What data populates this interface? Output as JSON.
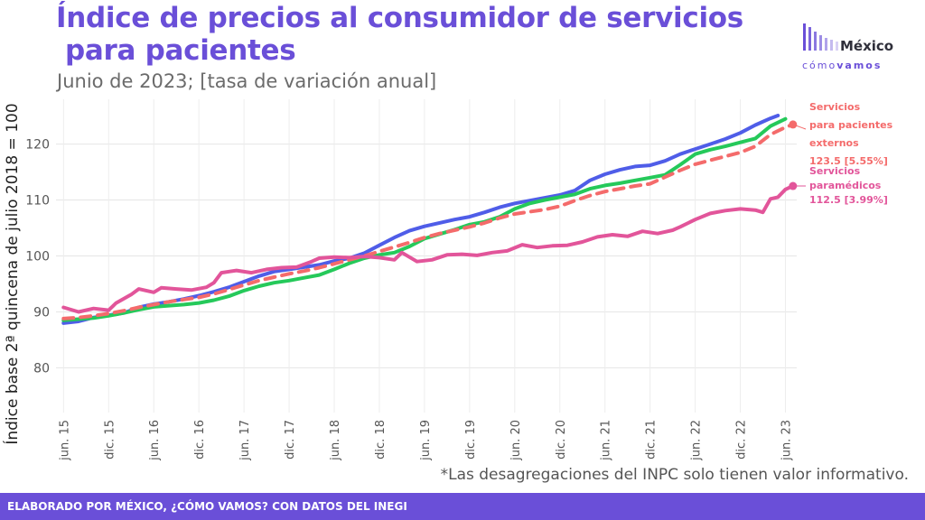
{
  "header": {
    "title_line1": "Índice de precios al consumidor de servicios",
    "title_line2": "para pacientes",
    "subtitle": "Junio de 2023; [tasa de variación anual]"
  },
  "logo": {
    "word1": "México",
    "word2a": "cómo",
    "word2b": "vamos",
    "bars_color": "#6a4fd8"
  },
  "note": "*Las desagregaciones del INPC solo tienen valor informativo.",
  "footer": {
    "text": "ELABORADO POR MÉXICO, ¿CÓMO VAMOS? CON DATOS DEL INEGI"
  },
  "chart_data": {
    "type": "line",
    "ylabel": "Índice base 2ª quincena de julio 2018 = 100",
    "xlabel": "",
    "x_tick_labels": [
      "jun. 15",
      "dic. 15",
      "jun. 16",
      "dic. 16",
      "jun. 17",
      "dic. 17",
      "jun. 18",
      "dic. 18",
      "jun. 19",
      "dic. 19",
      "jun. 20",
      "dic. 20",
      "jun. 21",
      "dic. 21",
      "jun. 22",
      "dic. 22",
      "jun. 23"
    ],
    "y_ticks": [
      80,
      90,
      100,
      110,
      120
    ],
    "ylim": [
      72,
      128
    ],
    "xlim": [
      -1,
      97.5
    ],
    "grid": true,
    "annotations": [
      {
        "series": 2,
        "lines": [
          "Servicios",
          "para pacientes",
          "externos",
          "123.5 [5.55%]"
        ],
        "color": "#f46b6b"
      },
      {
        "series": 3,
        "lines": [
          "Servicios",
          "paramédicos",
          "112.5 [3.99%]"
        ],
        "color": "#e2559a"
      }
    ],
    "series": [
      {
        "color": "#4f5de8",
        "dashed": false,
        "end_point": false,
        "points": [
          [
            0,
            88
          ],
          [
            2,
            88.3
          ],
          [
            4,
            89
          ],
          [
            6,
            89.4
          ],
          [
            8,
            89.8
          ],
          [
            10,
            90.8
          ],
          [
            12,
            91.4
          ],
          [
            14,
            91.8
          ],
          [
            16,
            92.3
          ],
          [
            18,
            92.9
          ],
          [
            20,
            93.6
          ],
          [
            22,
            94.4
          ],
          [
            24,
            95.4
          ],
          [
            26,
            96.4
          ],
          [
            28,
            97.2
          ],
          [
            30,
            97.6
          ],
          [
            32,
            98
          ],
          [
            34,
            98.4
          ],
          [
            36,
            99.1
          ],
          [
            38,
            99.6
          ],
          [
            40,
            100.5
          ],
          [
            42,
            101.9
          ],
          [
            44,
            103.3
          ],
          [
            46,
            104.5
          ],
          [
            48,
            105.3
          ],
          [
            50,
            105.9
          ],
          [
            52,
            106.5
          ],
          [
            54,
            107
          ],
          [
            56,
            107.8
          ],
          [
            58,
            108.7
          ],
          [
            60,
            109.4
          ],
          [
            62,
            109.9
          ],
          [
            64,
            110.4
          ],
          [
            66,
            110.9
          ],
          [
            68,
            111.7
          ],
          [
            70,
            113.5
          ],
          [
            72,
            114.6
          ],
          [
            74,
            115.4
          ],
          [
            76,
            116
          ],
          [
            78,
            116.2
          ],
          [
            80,
            117
          ],
          [
            82,
            118.2
          ],
          [
            84,
            119.1
          ],
          [
            86,
            120
          ],
          [
            88,
            120.9
          ],
          [
            90,
            122
          ],
          [
            92,
            123.4
          ],
          [
            94,
            124.6
          ],
          [
            95,
            125.1
          ]
        ]
      },
      {
        "color": "#25c95a",
        "dashed": false,
        "end_point": false,
        "points": [
          [
            0,
            88.5
          ],
          [
            2,
            88.7
          ],
          [
            4,
            88.9
          ],
          [
            6,
            89.3
          ],
          [
            8,
            89.8
          ],
          [
            10,
            90.4
          ],
          [
            12,
            90.9
          ],
          [
            14,
            91.1
          ],
          [
            16,
            91.3
          ],
          [
            18,
            91.6
          ],
          [
            20,
            92.1
          ],
          [
            22,
            92.8
          ],
          [
            24,
            93.8
          ],
          [
            26,
            94.6
          ],
          [
            28,
            95.2
          ],
          [
            30,
            95.6
          ],
          [
            32,
            96.1
          ],
          [
            34,
            96.6
          ],
          [
            36,
            97.6
          ],
          [
            38,
            98.7
          ],
          [
            40,
            99.6
          ],
          [
            42,
            100.2
          ],
          [
            44,
            100.6
          ],
          [
            46,
            101.7
          ],
          [
            48,
            103.1
          ],
          [
            50,
            103.9
          ],
          [
            52,
            104.7
          ],
          [
            54,
            105.6
          ],
          [
            56,
            106.1
          ],
          [
            58,
            107
          ],
          [
            60,
            108.4
          ],
          [
            62,
            109.4
          ],
          [
            64,
            110
          ],
          [
            66,
            110.5
          ],
          [
            68,
            111
          ],
          [
            70,
            112
          ],
          [
            72,
            112.6
          ],
          [
            74,
            113
          ],
          [
            76,
            113.5
          ],
          [
            78,
            114
          ],
          [
            80,
            114.5
          ],
          [
            82,
            116.3
          ],
          [
            84,
            118.2
          ],
          [
            86,
            119
          ],
          [
            88,
            119.6
          ],
          [
            90,
            120.3
          ],
          [
            92,
            121
          ],
          [
            94,
            123.2
          ],
          [
            96,
            124.5
          ]
        ]
      },
      {
        "color": "#f46b6b",
        "dashed": true,
        "end_point": true,
        "points": [
          [
            0,
            88.8
          ],
          [
            2,
            89
          ],
          [
            4,
            89.3
          ],
          [
            6,
            89.7
          ],
          [
            8,
            90.2
          ],
          [
            10,
            90.8
          ],
          [
            12,
            91.3
          ],
          [
            14,
            91.8
          ],
          [
            16,
            92.2
          ],
          [
            18,
            92.6
          ],
          [
            20,
            93.2
          ],
          [
            22,
            94
          ],
          [
            24,
            94.8
          ],
          [
            26,
            95.6
          ],
          [
            28,
            96.2
          ],
          [
            30,
            96.8
          ],
          [
            32,
            97.3
          ],
          [
            34,
            97.9
          ],
          [
            36,
            98.6
          ],
          [
            38,
            99.3
          ],
          [
            40,
            100
          ],
          [
            42,
            100.8
          ],
          [
            44,
            101.6
          ],
          [
            46,
            102.4
          ],
          [
            48,
            103.3
          ],
          [
            50,
            104
          ],
          [
            52,
            104.6
          ],
          [
            54,
            105.2
          ],
          [
            56,
            105.9
          ],
          [
            58,
            106.8
          ],
          [
            60,
            107.5
          ],
          [
            62,
            107.9
          ],
          [
            64,
            108.3
          ],
          [
            66,
            108.9
          ],
          [
            68,
            109.9
          ],
          [
            70,
            110.8
          ],
          [
            72,
            111.5
          ],
          [
            74,
            112
          ],
          [
            76,
            112.5
          ],
          [
            78,
            112.9
          ],
          [
            80,
            114.1
          ],
          [
            82,
            115.3
          ],
          [
            84,
            116.4
          ],
          [
            86,
            117.1
          ],
          [
            88,
            117.8
          ],
          [
            90,
            118.5
          ],
          [
            92,
            119.6
          ],
          [
            94,
            121.7
          ],
          [
            96,
            123
          ],
          [
            97,
            123.5
          ]
        ]
      },
      {
        "color": "#e2559a",
        "dashed": false,
        "end_point": true,
        "points": [
          [
            0,
            90.8
          ],
          [
            2,
            90
          ],
          [
            4,
            90.6
          ],
          [
            6,
            90.3
          ],
          [
            7,
            91.6
          ],
          [
            9,
            93.1
          ],
          [
            10,
            94.1
          ],
          [
            12,
            93.5
          ],
          [
            13,
            94.3
          ],
          [
            15,
            94.1
          ],
          [
            17,
            93.9
          ],
          [
            19,
            94.4
          ],
          [
            20,
            95.2
          ],
          [
            21,
            97
          ],
          [
            23,
            97.4
          ],
          [
            25,
            97
          ],
          [
            27,
            97.6
          ],
          [
            29,
            97.9
          ],
          [
            31,
            98
          ],
          [
            33,
            99
          ],
          [
            34,
            99.6
          ],
          [
            36,
            99.8
          ],
          [
            38,
            99.7
          ],
          [
            40,
            99.9
          ],
          [
            42,
            99.7
          ],
          [
            44,
            99.3
          ],
          [
            45,
            100.6
          ],
          [
            47,
            99
          ],
          [
            49,
            99.3
          ],
          [
            51,
            100.2
          ],
          [
            53,
            100.3
          ],
          [
            55,
            100.1
          ],
          [
            57,
            100.6
          ],
          [
            59,
            100.9
          ],
          [
            61,
            102
          ],
          [
            63,
            101.5
          ],
          [
            65,
            101.8
          ],
          [
            67,
            101.9
          ],
          [
            69,
            102.5
          ],
          [
            71,
            103.4
          ],
          [
            73,
            103.8
          ],
          [
            75,
            103.5
          ],
          [
            77,
            104.4
          ],
          [
            79,
            104
          ],
          [
            81,
            104.6
          ],
          [
            82,
            105.2
          ],
          [
            84,
            106.5
          ],
          [
            86,
            107.6
          ],
          [
            88,
            108.1
          ],
          [
            90,
            108.4
          ],
          [
            92,
            108.2
          ],
          [
            93,
            107.8
          ],
          [
            94,
            110.2
          ],
          [
            95,
            110.5
          ],
          [
            96,
            111.9
          ],
          [
            97,
            112.5
          ]
        ]
      }
    ]
  }
}
